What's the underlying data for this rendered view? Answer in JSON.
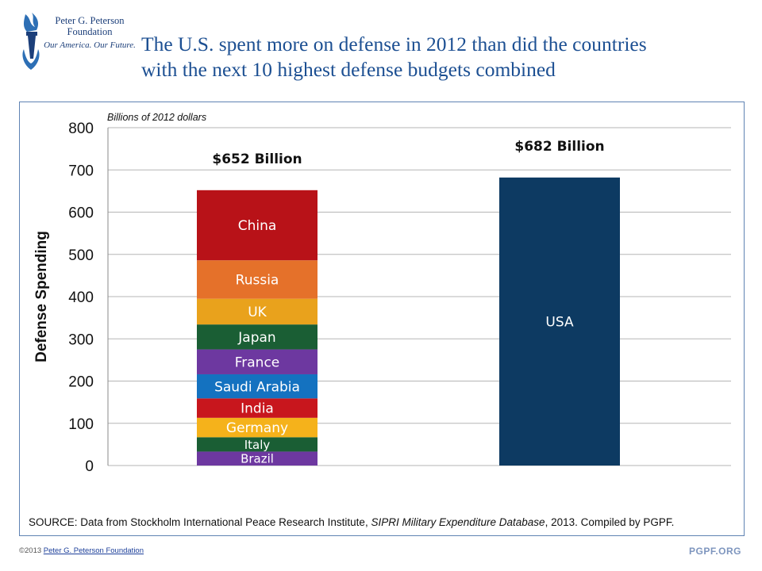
{
  "header": {
    "org_line1": "Peter G. Peterson",
    "org_line2": "Foundation",
    "tagline": "Our America. Our Future.",
    "title_line1": "The U.S. spent more on defense in 2012 than did the countries",
    "title_line2": "with the next 10 highest defense budgets combined"
  },
  "colors": {
    "title": "#1c4f92",
    "logo_blue": "#1c3f7a",
    "frame_border": "#5f83b3",
    "usa_bar": "#0d3a62"
  },
  "chart_data": {
    "type": "bar",
    "stacked": true,
    "unit_label": "Billions of 2012 dollars",
    "ylabel": "Defense Spending",
    "ylim": [
      0,
      800
    ],
    "yticks": [
      0,
      100,
      200,
      300,
      400,
      500,
      600,
      700,
      800
    ],
    "grid": true,
    "bars": [
      {
        "total_label": "$652 Billion",
        "segments": [
          {
            "name": "Brazil",
            "value": 33,
            "color": "#6d38a0"
          },
          {
            "name": "Italy",
            "value": 34,
            "color": "#1a5e34"
          },
          {
            "name": "Germany",
            "value": 46,
            "color": "#f5b21b"
          },
          {
            "name": "India",
            "value": 46,
            "color": "#c8161d"
          },
          {
            "name": "Saudi Arabia",
            "value": 57,
            "color": "#1472c0"
          },
          {
            "name": "France",
            "value": 59,
            "color": "#6d38a0"
          },
          {
            "name": "Japan",
            "value": 59,
            "color": "#1a5e34"
          },
          {
            "name": "UK",
            "value": 61,
            "color": "#e9a21c"
          },
          {
            "name": "Russia",
            "value": 91,
            "color": "#e5712a"
          },
          {
            "name": "China",
            "value": 166,
            "color": "#b81218"
          }
        ]
      },
      {
        "total_label": "$682 Billion",
        "segments": [
          {
            "name": "USA",
            "value": 682,
            "color": "#0d3a62"
          }
        ]
      }
    ]
  },
  "footer": {
    "source_prefix": "SOURCE: Data from Stockholm International Peace Research Institute, ",
    "source_italic": "SIPRI Military Expenditure Database",
    "source_suffix": ", 2013. Compiled by PGPF.",
    "copyright": "©2013",
    "copyright_link": "Peter G. Peterson Foundation",
    "site": "PGPF.ORG"
  }
}
